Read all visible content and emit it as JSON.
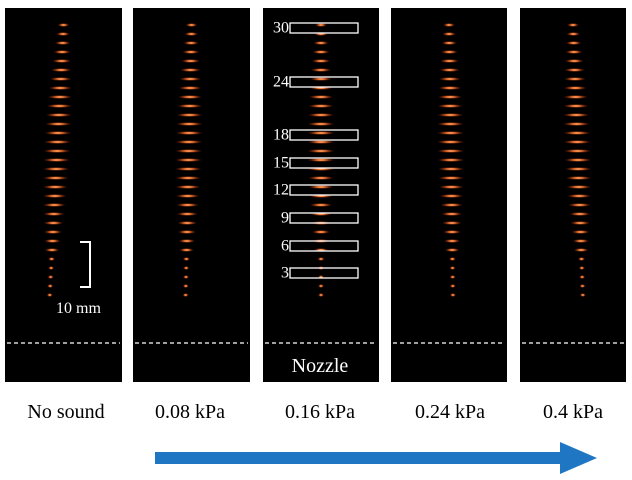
{
  "panels": [
    {
      "label": "No sound"
    },
    {
      "label": "0.08 kPa"
    },
    {
      "label": "0.16 kPa"
    },
    {
      "label": "0.24 kPa"
    },
    {
      "label": "0.4 kPa"
    }
  ],
  "scale_bar": "10 mm",
  "nozzle": "Nozzle",
  "boxes": [
    30,
    24,
    18,
    15,
    12,
    9,
    6,
    3
  ]
}
